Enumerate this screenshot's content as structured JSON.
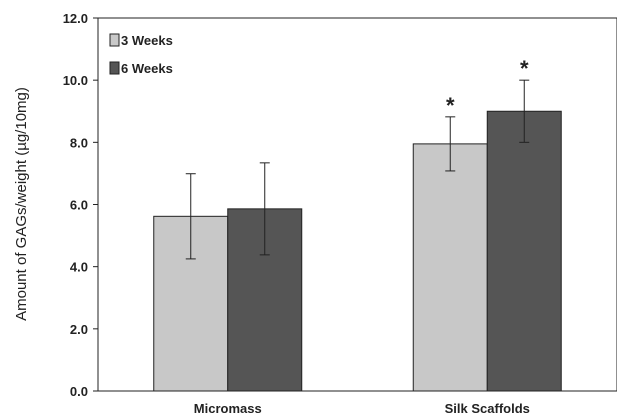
{
  "chart_data": {
    "type": "bar",
    "title": "",
    "xlabel": "",
    "ylabel": "Amount of GAGs/weight (µg/10mg)",
    "ylim": [
      0,
      12
    ],
    "yticks": [
      "0.0",
      "2.0",
      "4.0",
      "6.0",
      "8.0",
      "10.0",
      "12.0"
    ],
    "categories": [
      "Micromass",
      "Silk Scaffolds"
    ],
    "series": [
      {
        "name": "3 Weeks",
        "values": [
          5.62,
          7.95
        ],
        "errors": [
          1.37,
          0.87
        ],
        "color": "#c8c8c8"
      },
      {
        "name": "6 Weeks",
        "values": [
          5.86,
          9.0
        ],
        "errors": [
          1.48,
          1.0
        ],
        "color": "#555555"
      }
    ],
    "annotations": [
      {
        "text": "*",
        "category": "Silk Scaffolds",
        "series": "3 Weeks"
      },
      {
        "text": "*",
        "category": "Silk Scaffolds",
        "series": "6 Weeks"
      }
    ],
    "legend": "top-left",
    "grid": false
  }
}
